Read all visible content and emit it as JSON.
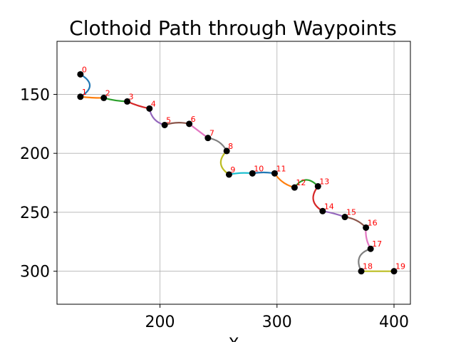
{
  "chart_data": {
    "type": "line",
    "title": "Clothoid Path through Waypoints",
    "xlabel": "X",
    "ylabel": "",
    "xlim": [
      112,
      414
    ],
    "ylim": [
      328,
      105
    ],
    "y_inverted": true,
    "grid": true,
    "xticks": [
      200,
      300,
      400
    ],
    "yticks": [
      150,
      200,
      250,
      300
    ],
    "waypoints": [
      {
        "label": "0",
        "x": 132,
        "y": 133
      },
      {
        "label": "1",
        "x": 132,
        "y": 152
      },
      {
        "label": "2",
        "x": 152,
        "y": 153
      },
      {
        "label": "3",
        "x": 172,
        "y": 156
      },
      {
        "label": "4",
        "x": 191,
        "y": 162
      },
      {
        "label": "5",
        "x": 204,
        "y": 176
      },
      {
        "label": "6",
        "x": 225,
        "y": 175
      },
      {
        "label": "7",
        "x": 241,
        "y": 187
      },
      {
        "label": "8",
        "x": 257,
        "y": 198
      },
      {
        "label": "9",
        "x": 259,
        "y": 218
      },
      {
        "label": "10",
        "x": 279,
        "y": 217
      },
      {
        "label": "11",
        "x": 298,
        "y": 217
      },
      {
        "label": "12",
        "x": 315,
        "y": 229
      },
      {
        "label": "13",
        "x": 335,
        "y": 228
      },
      {
        "label": "14",
        "x": 339,
        "y": 249
      },
      {
        "label": "15",
        "x": 358,
        "y": 254
      },
      {
        "label": "16",
        "x": 376,
        "y": 263
      },
      {
        "label": "17",
        "x": 380,
        "y": 281
      },
      {
        "label": "18",
        "x": 372,
        "y": 300
      },
      {
        "label": "19",
        "x": 400,
        "y": 300
      }
    ],
    "segment_bulge": [
      -8,
      0.3,
      0.6,
      0.6,
      3,
      -1.5,
      0,
      -2.5,
      6,
      -0.8,
      -0.8,
      2,
      -6,
      6,
      -0.5,
      -1.8,
      1.5,
      6,
      0
    ],
    "segment_colors": [
      "#1f77b4",
      "#ff7f0e",
      "#2ca02c",
      "#d62728",
      "#9467bd",
      "#8c564b",
      "#e377c2",
      "#7f7f7f",
      "#bcbd22",
      "#17becf"
    ],
    "marker_color": "#000000",
    "label_color": "#ff0000"
  }
}
